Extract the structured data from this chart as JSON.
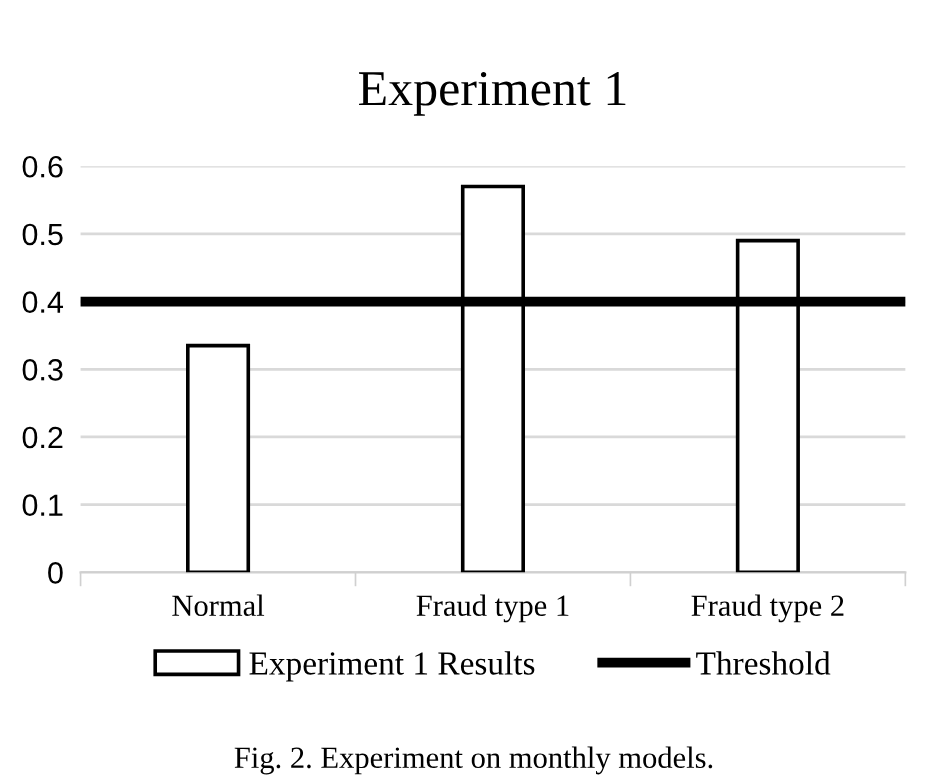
{
  "chart_data": {
    "type": "bar",
    "title": "Experiment 1",
    "categories": [
      "Normal",
      "Fraud type 1",
      "Fraud type 2"
    ],
    "series": [
      {
        "name": "Experiment 1 Results",
        "color": "#ffffff",
        "values": [
          0.335,
          0.57,
          0.49
        ]
      }
    ],
    "ylim": [
      0,
      0.6
    ],
    "yticks": [
      0,
      0.1,
      0.2,
      0.3,
      0.4,
      0.5,
      0.6
    ],
    "ref_lines": [
      {
        "axis": "y",
        "value": 0.4,
        "label": "Threshold",
        "color": "#000000",
        "line_style": "solid"
      }
    ],
    "grid": "y",
    "legend": "bottom",
    "annotations": [
      "Fig. 2. Experiment on monthly models."
    ]
  }
}
